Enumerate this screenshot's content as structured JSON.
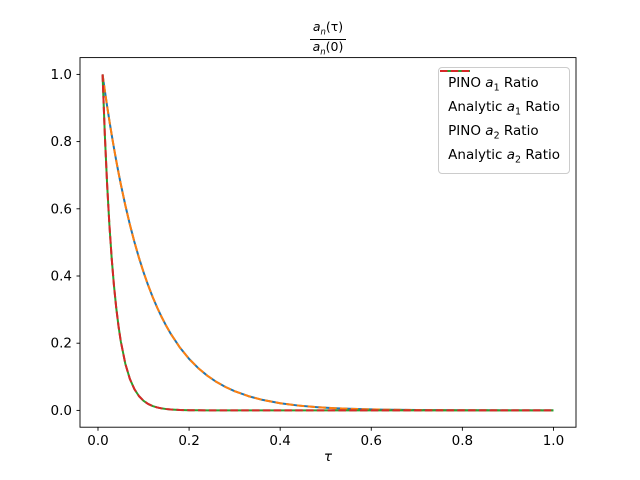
{
  "figure": {
    "background": "#ffffff",
    "title": {
      "num": {
        "base": "a",
        "sub": "n",
        "arg": "(τ)"
      },
      "den": {
        "base": "a",
        "sub": "n",
        "arg": "(0)"
      }
    },
    "xlabel": "τ",
    "axis_color": "#000000"
  },
  "legend": {
    "position": "upper right",
    "items": [
      {
        "pre": "PINO ",
        "var": "a",
        "sub": "1",
        "post": " Ratio",
        "color": "#1f77b4",
        "linestyle": "solid"
      },
      {
        "pre": "Analytic ",
        "var": "a",
        "sub": "1",
        "post": " Ratio",
        "color": "#ff7f0e",
        "linestyle": "dashed"
      },
      {
        "pre": "PINO ",
        "var": "a",
        "sub": "2",
        "post": " Ratio",
        "color": "#2ca02c",
        "linestyle": "solid"
      },
      {
        "pre": "Analytic ",
        "var": "a",
        "sub": "2",
        "post": " Ratio",
        "color": "#d62728",
        "linestyle": "dashed"
      }
    ]
  },
  "chart_data": {
    "type": "line",
    "title": "a_n(τ) / a_n(0)",
    "xlabel": "τ",
    "ylabel": "",
    "grid": false,
    "legend_position": "upper right",
    "xlim": [
      -0.0395,
      1.0495
    ],
    "ylim": [
      -0.05,
      1.05
    ],
    "xticks": {
      "values": [
        0.0,
        0.2,
        0.4,
        0.6,
        0.8,
        1.0
      ],
      "labels": [
        "0.0",
        "0.2",
        "0.4",
        "0.6",
        "0.8",
        "1.0"
      ]
    },
    "yticks": {
      "values": [
        0.0,
        0.2,
        0.4,
        0.6,
        0.8,
        1.0
      ],
      "labels": [
        "0.0",
        "0.2",
        "0.4",
        "0.6",
        "0.8",
        "1.0"
      ]
    },
    "x": [
      0.01,
      0.015,
      0.02,
      0.025,
      0.03,
      0.035,
      0.04,
      0.045,
      0.05,
      0.06,
      0.07,
      0.08,
      0.09,
      0.1,
      0.11,
      0.12,
      0.13,
      0.14,
      0.15,
      0.16,
      0.18,
      0.2,
      0.22,
      0.24,
      0.26,
      0.28,
      0.3,
      0.33,
      0.36,
      0.4,
      0.44,
      0.48,
      0.52,
      0.56,
      0.6,
      0.65,
      0.7,
      0.75,
      0.8,
      0.85,
      0.9,
      0.95,
      1.0
    ],
    "series": [
      {
        "name": "PINO a1 Ratio",
        "color": "#1f77b4",
        "linestyle": "solid",
        "values": [
          1,
          0.9519,
          0.906,
          0.8624,
          0.8209,
          0.7813,
          0.7437,
          0.7079,
          0.6738,
          0.6105,
          0.5531,
          0.5011,
          0.454,
          0.4113,
          0.3727,
          0.3376,
          0.3059,
          0.2772,
          0.2511,
          0.2275,
          0.1868,
          0.1533,
          0.1259,
          0.1033,
          0.0848,
          0.0697,
          0.0572,
          0.0425,
          0.0316,
          0.0213,
          0.0144,
          0.0097,
          0.0065,
          0.0044,
          0.003,
          0.0018,
          0.0011,
          0.0007,
          0.0004,
          0.0003,
          0.0002,
          0.0001,
          0.0001
        ]
      },
      {
        "name": "Analytic a1 Ratio",
        "color": "#ff7f0e",
        "linestyle": "dashed",
        "values": [
          1,
          0.9519,
          0.906,
          0.8624,
          0.8209,
          0.7813,
          0.7437,
          0.7079,
          0.6738,
          0.6105,
          0.5531,
          0.5011,
          0.454,
          0.4113,
          0.3727,
          0.3376,
          0.3059,
          0.2772,
          0.2511,
          0.2275,
          0.1868,
          0.1533,
          0.1259,
          0.1033,
          0.0848,
          0.0697,
          0.0572,
          0.0425,
          0.0316,
          0.0213,
          0.0144,
          0.0097,
          0.0065,
          0.0044,
          0.003,
          0.0018,
          0.0011,
          0.0007,
          0.0004,
          0.0003,
          0.0002,
          0.0001,
          0.0001
        ]
      },
      {
        "name": "PINO a2 Ratio",
        "color": "#2ca02c",
        "linestyle": "solid",
        "values": [
          1,
          0.8209,
          0.6738,
          0.5531,
          0.454,
          0.3727,
          0.3059,
          0.2511,
          0.2061,
          0.1389,
          0.0936,
          0.0631,
          0.0425,
          0.0286,
          0.0193,
          0.013,
          0.0088,
          0.0059,
          0.004,
          0.0027,
          0.0012,
          0.0006,
          0.0003,
          0.0001,
          0.0001,
          0,
          0,
          0,
          0,
          0,
          0,
          0,
          0,
          0,
          0,
          0,
          0,
          0,
          0,
          0,
          0,
          0,
          0
        ]
      },
      {
        "name": "Analytic a2 Ratio",
        "color": "#d62728",
        "linestyle": "dashed",
        "values": [
          1,
          0.8209,
          0.6738,
          0.5531,
          0.454,
          0.3727,
          0.3059,
          0.2511,
          0.2061,
          0.1389,
          0.0936,
          0.0631,
          0.0425,
          0.0286,
          0.0193,
          0.013,
          0.0088,
          0.0059,
          0.004,
          0.0027,
          0.0012,
          0.0006,
          0.0003,
          0.0001,
          0.0001,
          0,
          0,
          0,
          0,
          0,
          0,
          0,
          0,
          0,
          0,
          0,
          0,
          0,
          0,
          0,
          0,
          0,
          0
        ]
      }
    ]
  }
}
